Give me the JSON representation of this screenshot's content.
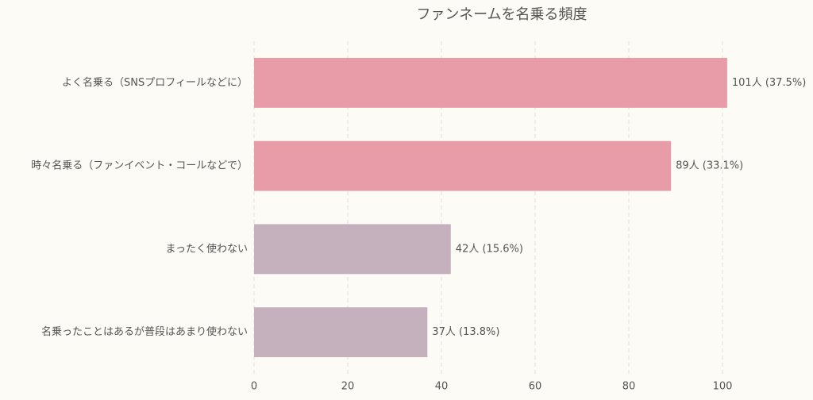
{
  "chart_data": {
    "type": "barh",
    "title": "ファンネームを名乗る頻度",
    "categories": [
      "よく名乗る（SNSプロフィールなどに）",
      "時々名乗る（ファンイベント・コールなどで）",
      "まったく使わない",
      "名乗ったことはあるが普段はあまり使わない"
    ],
    "values": [
      101,
      89,
      42,
      37
    ],
    "value_labels": [
      "101人 (37.5%)",
      "89人 (33.1%)",
      "42人 (15.6%)",
      "37人 (13.8%)"
    ],
    "colors": [
      "#e79ca8",
      "#e79ca8",
      "#c5b1bd",
      "#c5b1bd"
    ],
    "xlim": [
      0,
      106
    ],
    "xticks": [
      0,
      20,
      40,
      60,
      80,
      100
    ],
    "grid": true
  }
}
